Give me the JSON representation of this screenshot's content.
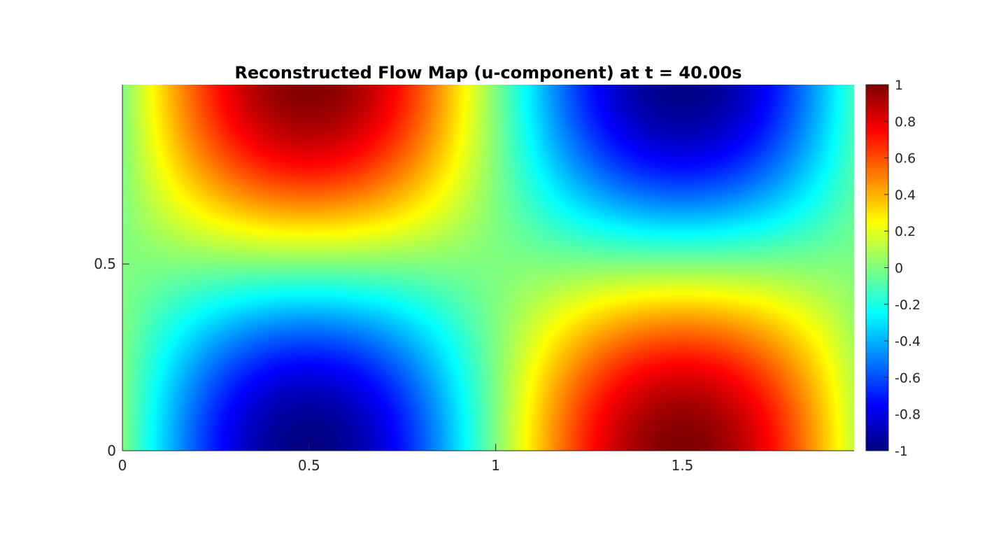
{
  "chart_data": {
    "type": "heatmap",
    "title": "Reconstructed Flow Map (u-component) at t = 40.00s",
    "xlabel": "",
    "ylabel": "",
    "xlim": [
      0,
      1.96
    ],
    "ylim": [
      0,
      0.98
    ],
    "x_ticks": [
      0,
      0.5,
      1,
      1.5
    ],
    "x_tick_labels": [
      "0",
      "0.5",
      "1",
      "1.5"
    ],
    "y_ticks": [
      0,
      0.5
    ],
    "y_tick_labels": [
      "0",
      "0.5"
    ],
    "field": {
      "expression": "u(x, y) = -sin(pi * x) * cos(pi * y)",
      "min": -1,
      "max": 1,
      "extrema": [
        {
          "x": 0.5,
          "y": 0.98,
          "value": 1
        },
        {
          "x": 1.5,
          "y": 0.98,
          "value": -1
        },
        {
          "x": 0.5,
          "y": 0,
          "value": -1
        },
        {
          "x": 1.5,
          "y": 0,
          "value": 1
        }
      ]
    },
    "colormap": "jet",
    "colorbar": {
      "ticks": [
        1,
        0.8,
        0.6,
        0.4,
        0.2,
        0,
        -0.2,
        -0.4,
        -0.6,
        -0.8,
        -1
      ],
      "tick_labels": [
        "1",
        "0.8",
        "0.6",
        "0.4",
        "0.2",
        "0",
        "-0.2",
        "-0.4",
        "-0.6",
        "-0.8",
        "-1"
      ],
      "range": [
        -1,
        1
      ],
      "placement": "right"
    },
    "grid": false,
    "legend": "none"
  }
}
